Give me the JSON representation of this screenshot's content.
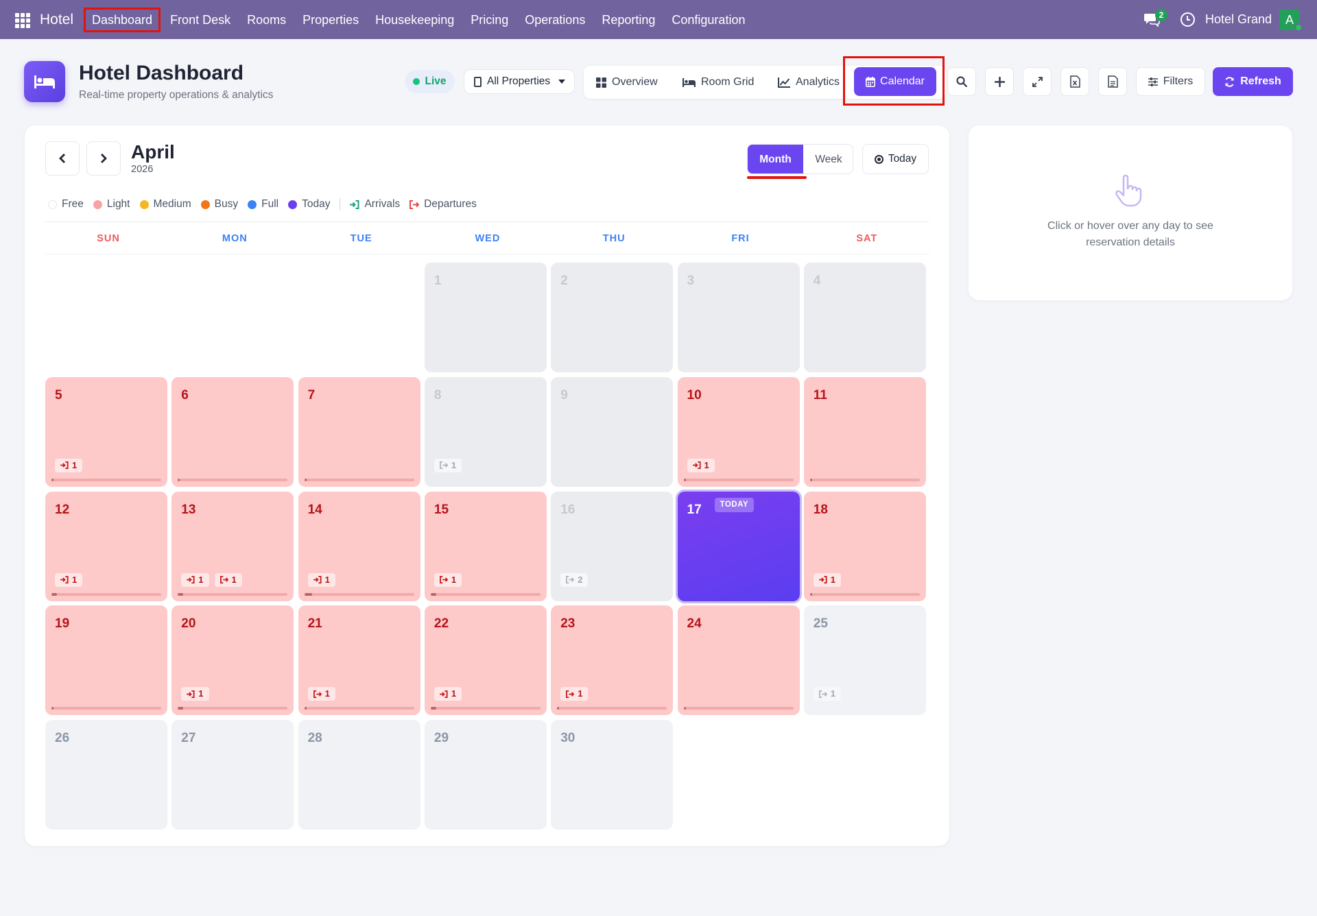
{
  "topbar": {
    "brand": "Hotel",
    "nav": [
      "Dashboard",
      "Front Desk",
      "Rooms",
      "Properties",
      "Housekeeping",
      "Pricing",
      "Operations",
      "Reporting",
      "Configuration"
    ],
    "chat_count": "2",
    "company": "Hotel Grand",
    "avatar_letter": "A"
  },
  "header": {
    "title": "Hotel Dashboard",
    "subtitle": "Real-time property operations & analytics",
    "live_label": "Live",
    "property_select": "All Properties",
    "tabs": [
      "Overview",
      "Room Grid",
      "Analytics",
      "Calendar"
    ],
    "active_tab": "Calendar",
    "filters_label": "Filters",
    "refresh_label": "Refresh"
  },
  "calendar": {
    "month": "April",
    "year": "2026",
    "view_month": "Month",
    "view_week": "Week",
    "today_label": "Today",
    "active_view": "Month",
    "legend": [
      {
        "label": "Free",
        "color": "#ffffff"
      },
      {
        "label": "Light",
        "color": "#f7a3a3"
      },
      {
        "label": "Medium",
        "color": "#f5b622"
      },
      {
        "label": "Busy",
        "color": "#f2751a"
      },
      {
        "label": "Full",
        "color": "#3b82f6"
      },
      {
        "label": "Today",
        "color": "#6d3ef0"
      }
    ],
    "arrivals_label": "Arrivals",
    "departures_label": "Departures",
    "weekdays": [
      "SUN",
      "MON",
      "TUE",
      "WED",
      "THU",
      "FRI",
      "SAT"
    ],
    "weekday_colors": [
      "#ef5a5a",
      "#3b82f6",
      "#3b82f6",
      "#3b82f6",
      "#3b82f6",
      "#3b82f6",
      "#ef5a5a"
    ],
    "today_tag": "TODAY",
    "days": [
      {
        "day": "1",
        "status": "free"
      },
      {
        "day": "2",
        "status": "free"
      },
      {
        "day": "3",
        "status": "free"
      },
      {
        "day": "4",
        "status": "free"
      },
      {
        "day": "5",
        "status": "light",
        "occupancy": 0.02,
        "badges": [
          {
            "type": "arrival",
            "count": "1"
          }
        ]
      },
      {
        "day": "6",
        "status": "light",
        "occupancy": 0.02,
        "badges": []
      },
      {
        "day": "7",
        "status": "light",
        "occupancy": 0.02,
        "badges": []
      },
      {
        "day": "8",
        "status": "free",
        "badges": [
          {
            "type": "departure",
            "count": "1"
          }
        ]
      },
      {
        "day": "9",
        "status": "free",
        "badges": []
      },
      {
        "day": "10",
        "status": "light",
        "occupancy": 0.02,
        "badges": [
          {
            "type": "arrival",
            "count": "1"
          }
        ]
      },
      {
        "day": "11",
        "status": "light",
        "occupancy": 0.02,
        "badges": []
      },
      {
        "day": "12",
        "status": "light",
        "occupancy": 0.05,
        "badges": [
          {
            "type": "arrival",
            "count": "1"
          }
        ]
      },
      {
        "day": "13",
        "status": "light",
        "occupancy": 0.05,
        "badges": [
          {
            "type": "arrival",
            "count": "1"
          },
          {
            "type": "departure",
            "count": "1"
          }
        ]
      },
      {
        "day": "14",
        "status": "light",
        "occupancy": 0.07,
        "badges": [
          {
            "type": "arrival",
            "count": "1"
          }
        ]
      },
      {
        "day": "15",
        "status": "light",
        "occupancy": 0.05,
        "badges": [
          {
            "type": "departure",
            "count": "1"
          }
        ]
      },
      {
        "day": "16",
        "status": "free",
        "badges": [
          {
            "type": "departure",
            "count": "2"
          }
        ]
      },
      {
        "day": "17",
        "status": "today",
        "badges": []
      },
      {
        "day": "18",
        "status": "light",
        "occupancy": 0.02,
        "badges": [
          {
            "type": "arrival",
            "count": "1"
          }
        ]
      },
      {
        "day": "19",
        "status": "light",
        "occupancy": 0.02,
        "badges": []
      },
      {
        "day": "20",
        "status": "light",
        "occupancy": 0.05,
        "badges": [
          {
            "type": "arrival",
            "count": "1"
          }
        ]
      },
      {
        "day": "21",
        "status": "light",
        "occupancy": 0.02,
        "badges": [
          {
            "type": "departure",
            "count": "1"
          }
        ]
      },
      {
        "day": "22",
        "status": "light",
        "occupancy": 0.05,
        "badges": [
          {
            "type": "arrival",
            "count": "1"
          }
        ]
      },
      {
        "day": "23",
        "status": "light",
        "occupancy": 0.02,
        "badges": [
          {
            "type": "departure",
            "count": "1"
          }
        ]
      },
      {
        "day": "24",
        "status": "light",
        "occupancy": 0.02,
        "badges": []
      },
      {
        "day": "25",
        "status": "future",
        "badges": [
          {
            "type": "departure",
            "count": "1"
          }
        ]
      },
      {
        "day": "26",
        "status": "future",
        "badges": []
      },
      {
        "day": "27",
        "status": "future",
        "badges": []
      },
      {
        "day": "28",
        "status": "future",
        "badges": []
      },
      {
        "day": "29",
        "status": "future",
        "badges": []
      },
      {
        "day": "30",
        "status": "future",
        "badges": []
      }
    ]
  },
  "side_panel": {
    "hint": "Click or hover over any day to see reservation details"
  }
}
